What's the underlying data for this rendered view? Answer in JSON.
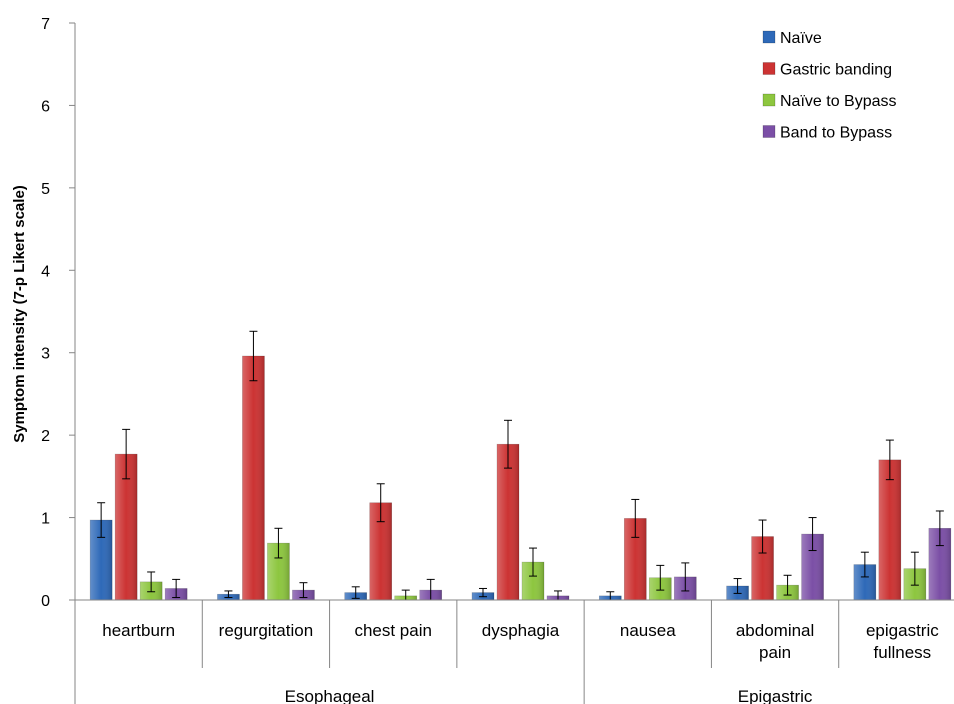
{
  "chart_data": {
    "type": "bar",
    "title": "",
    "xlabel": "",
    "ylabel": "Symptom intensity (7-p Likert scale)",
    "ylim": [
      0,
      7
    ],
    "yticks": [
      0,
      1,
      2,
      3,
      4,
      5,
      6,
      7
    ],
    "grid": false,
    "legend_position": "top-right",
    "categories": [
      [
        "heartburn"
      ],
      [
        "regurgitation"
      ],
      [
        "chest pain"
      ],
      [
        "dysphagia"
      ],
      [
        "nausea"
      ],
      [
        "abdominal",
        "pain"
      ],
      [
        "epigastric",
        "fullness"
      ]
    ],
    "groups": [
      {
        "label": "Esophageal",
        "categories": [
          0,
          1,
          2,
          3
        ]
      },
      {
        "label": "Epigastric",
        "categories": [
          4,
          5,
          6
        ]
      }
    ],
    "series": [
      {
        "name": "Naïve",
        "color": "#2E69B8",
        "values": [
          0.97,
          0.07,
          0.09,
          0.09,
          0.05,
          0.17,
          0.43
        ],
        "errors": [
          0.21,
          0.04,
          0.07,
          0.05,
          0.05,
          0.09,
          0.15
        ]
      },
      {
        "name": "Gastric banding",
        "color": "#CC3333",
        "values": [
          1.77,
          2.96,
          1.18,
          1.89,
          0.99,
          0.77,
          1.7
        ],
        "errors": [
          0.3,
          0.3,
          0.23,
          0.29,
          0.23,
          0.2,
          0.24
        ]
      },
      {
        "name": "Naïve to Bypass",
        "color": "#8DC63F",
        "values": [
          0.22,
          0.69,
          0.05,
          0.46,
          0.27,
          0.18,
          0.38
        ],
        "errors": [
          0.12,
          0.18,
          0.07,
          0.17,
          0.15,
          0.12,
          0.2
        ]
      },
      {
        "name": "Band to Bypass",
        "color": "#7B4FA6",
        "values": [
          0.14,
          0.12,
          0.12,
          0.05,
          0.28,
          0.8,
          0.87
        ],
        "errors": [
          0.11,
          0.09,
          0.13,
          0.06,
          0.17,
          0.2,
          0.21
        ]
      }
    ]
  }
}
